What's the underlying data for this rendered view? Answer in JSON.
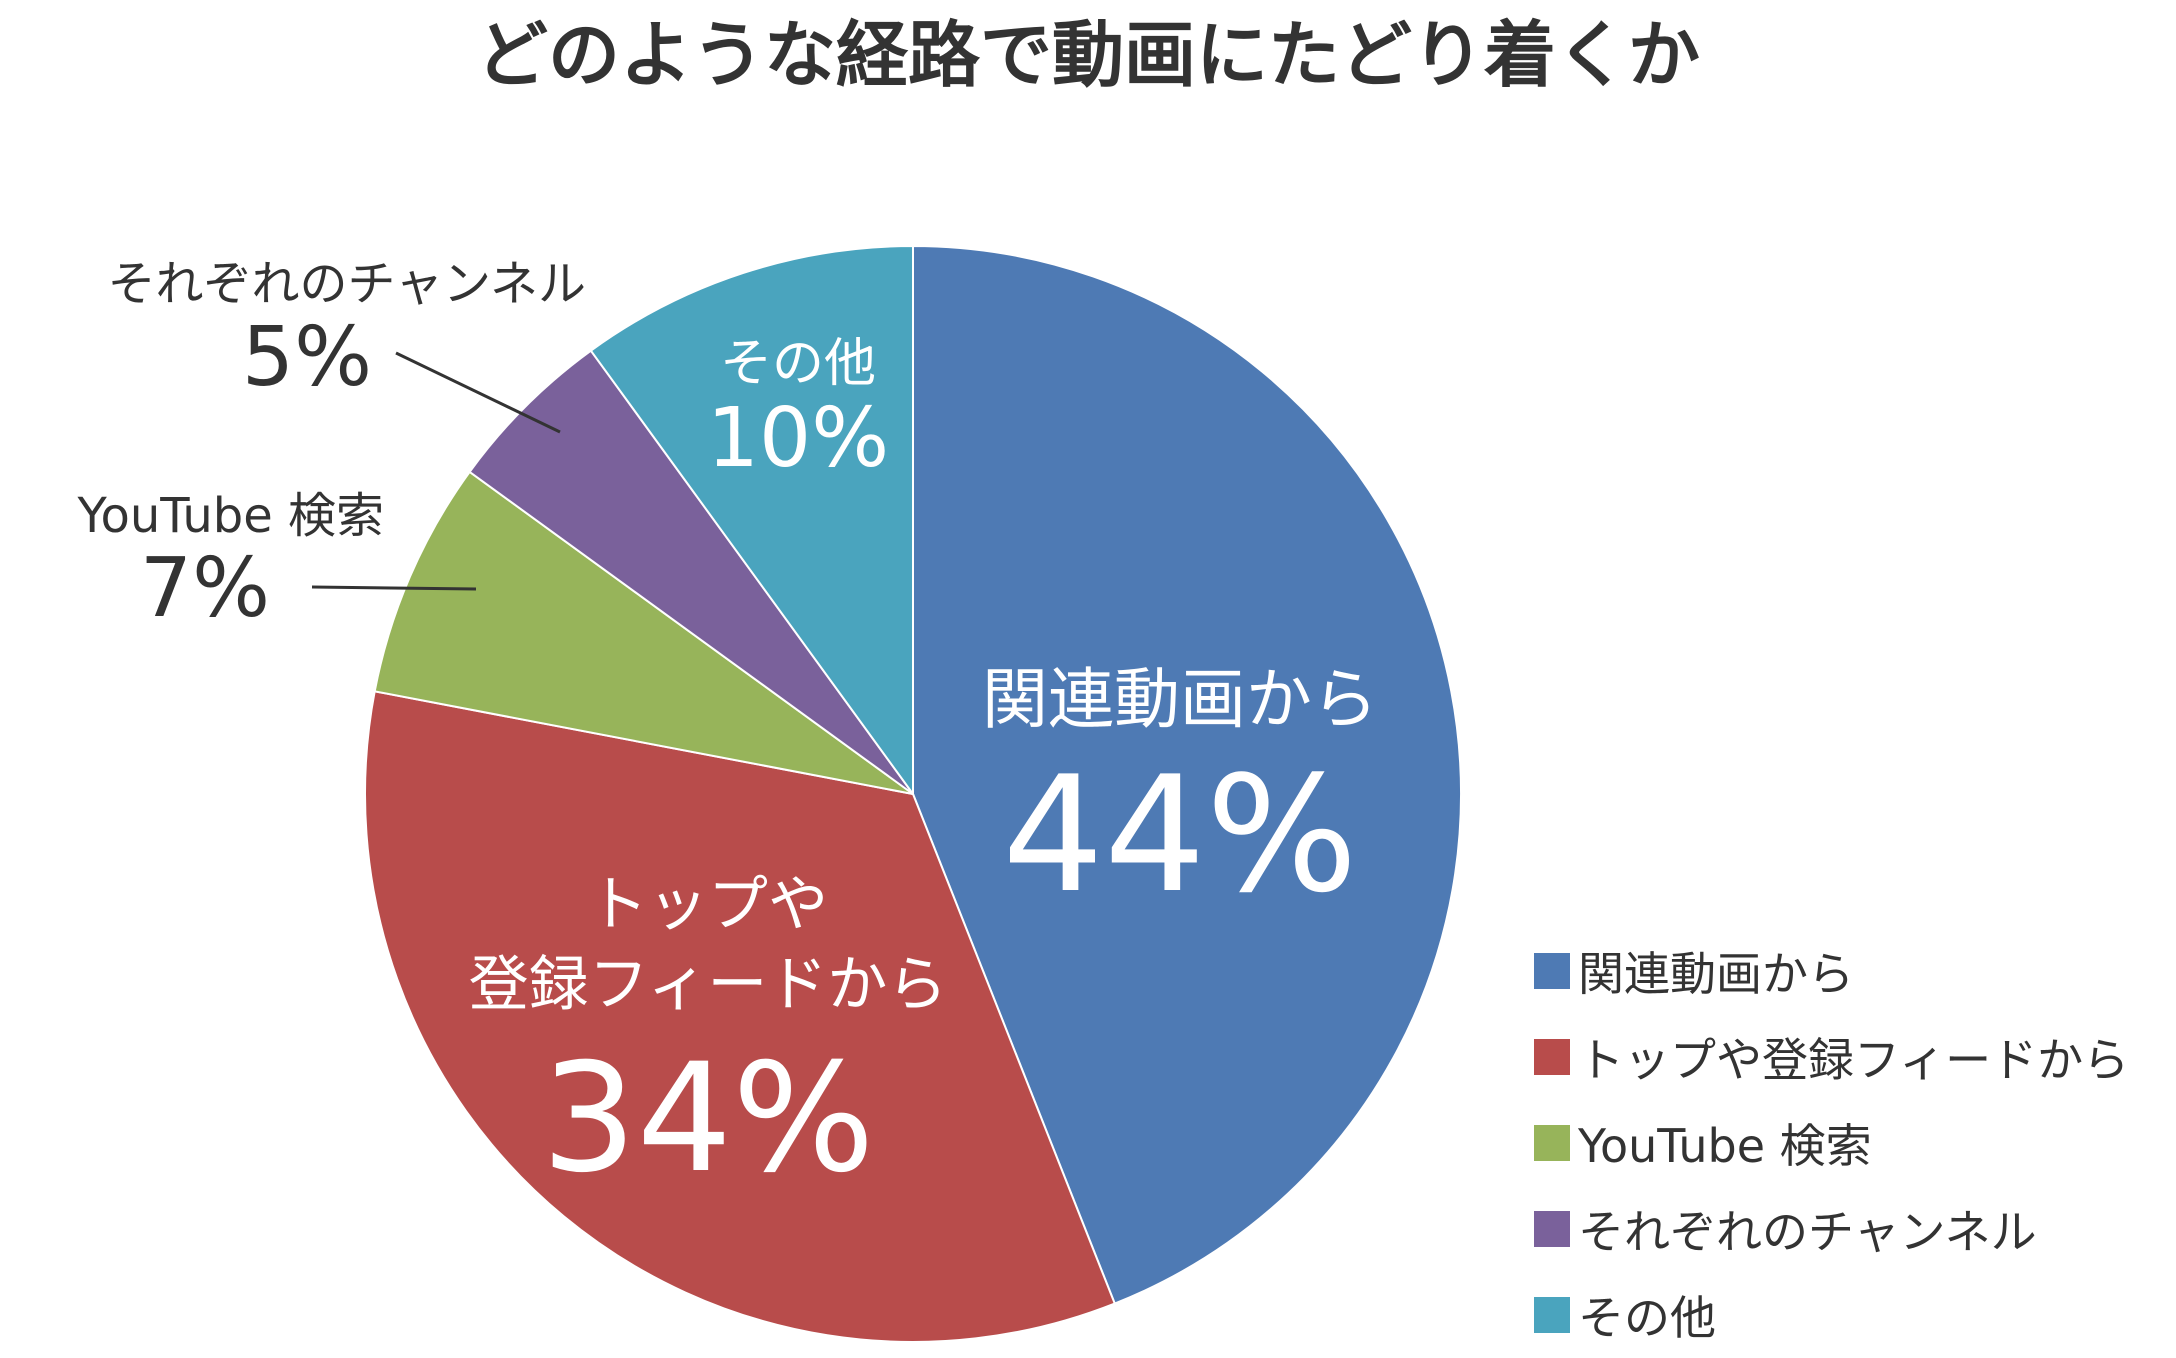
{
  "chart_data": {
    "type": "pie",
    "title": "どのような経路で動画にたどり着くか",
    "start_angle_deg": 0,
    "direction": "clockwise",
    "slices": [
      {
        "name": "関連動画から",
        "value": 44,
        "color": "#4e7ab4",
        "label_lines": [
          "関連動画から"
        ],
        "value_label": "44%",
        "label_placement": "inside"
      },
      {
        "name": "トップや登録フィードから",
        "value": 34,
        "color": "#b84c4b",
        "label_lines": [
          "トップや",
          "登録フィードから"
        ],
        "value_label": "34%",
        "label_placement": "inside"
      },
      {
        "name": "YouTube 検索",
        "value": 7,
        "color": "#97b45a",
        "label_lines": [
          "YouTube 検索"
        ],
        "value_label": "7%",
        "label_placement": "outside"
      },
      {
        "name": "それぞれのチャンネル",
        "value": 5,
        "color": "#7a619b",
        "label_lines": [
          "それぞれのチャンネル"
        ],
        "value_label": "5%",
        "label_placement": "outside"
      },
      {
        "name": "その他",
        "value": 10,
        "color": "#4aa4be",
        "label_lines": [
          "その他"
        ],
        "value_label": "10%",
        "label_placement": "inside"
      }
    ],
    "legend": {
      "position": "bottom-right",
      "items": [
        {
          "label": "関連動画から",
          "color": "#4e7ab4"
        },
        {
          "label": "トップや登録フィードから",
          "color": "#b84c4b"
        },
        {
          "label": "YouTube 検索",
          "color": "#97b45a"
        },
        {
          "label": "それぞれのチャンネル",
          "color": "#7a619b"
        },
        {
          "label": "その他",
          "color": "#4aa4be"
        }
      ]
    }
  }
}
